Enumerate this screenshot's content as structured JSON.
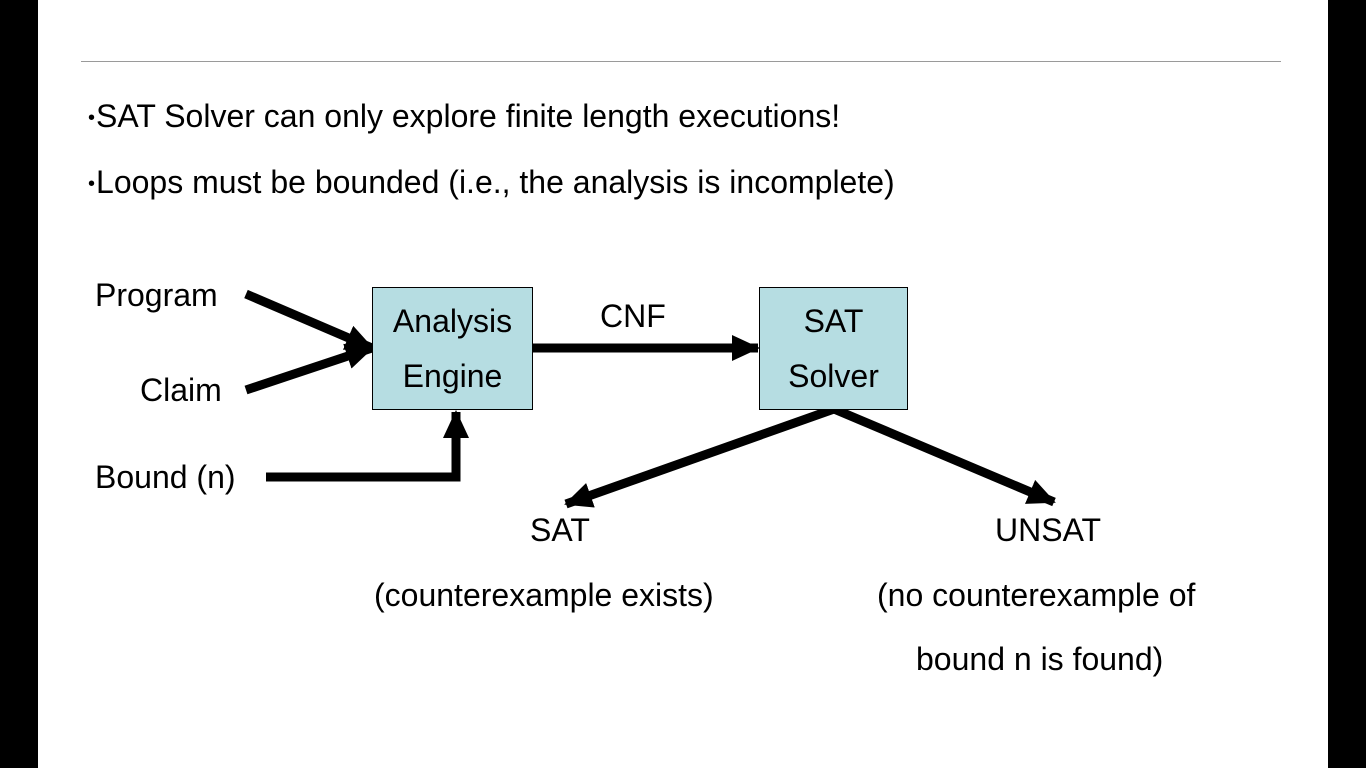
{
  "bullets": [
    "SAT Solver can only explore finite length executions!",
    "Loops must be bounded (i.e., the analysis is incomplete)"
  ],
  "bullet_marker": "•",
  "inputs": {
    "program": "Program",
    "claim": "Claim",
    "bound": "Bound (n)"
  },
  "analysis_engine": {
    "line1": "Analysis",
    "line2": "Engine"
  },
  "cnf_label": "CNF",
  "sat_solver": {
    "line1": "SAT",
    "line2": "Solver"
  },
  "outcomes": {
    "sat": {
      "title": "SAT",
      "desc": "(counterexample exists)"
    },
    "unsat": {
      "title": "UNSAT",
      "desc_line1": "(no counterexample of",
      "desc_line2": "bound n is found)"
    }
  },
  "colors": {
    "box_fill": "#b6dde2",
    "arrow": "#000000",
    "rule": "#9a9a9a",
    "frame": "#000000"
  }
}
